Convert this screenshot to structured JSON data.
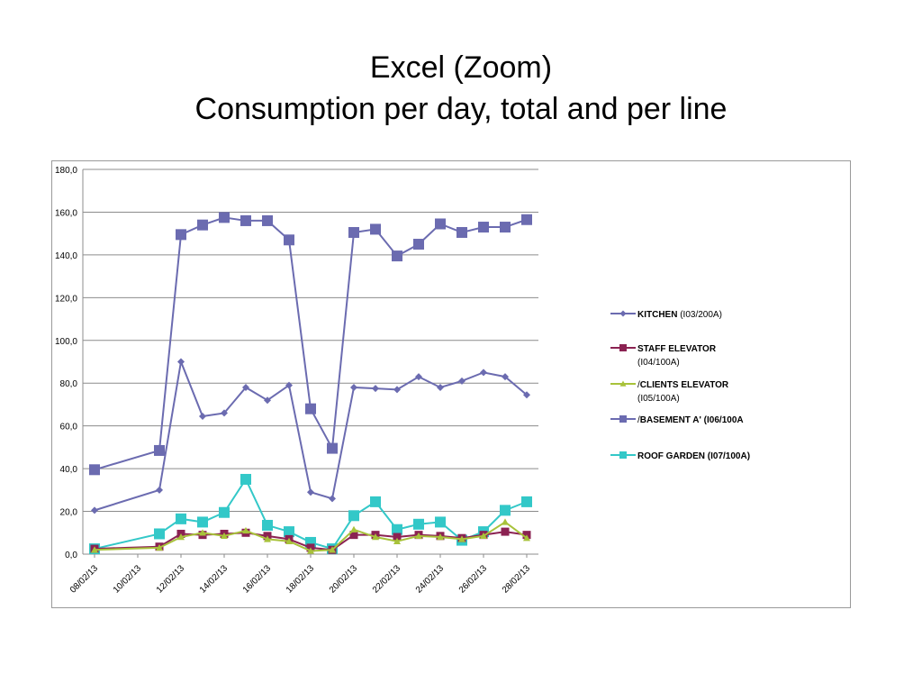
{
  "slide": {
    "title_line1": "Excel (Zoom)",
    "title_line2": "Consumption per day, total and per line"
  },
  "chart_data": {
    "type": "line",
    "xlabel": "",
    "ylabel": "",
    "ylim": [
      0,
      180
    ],
    "ytick_step": 20,
    "ytick_labels": [
      "0,0",
      "20,0",
      "40,0",
      "60,0",
      "80,0",
      "100,0",
      "120,0",
      "140,0",
      "160,0",
      "180,0"
    ],
    "x_range": [
      "08/02/13",
      "28/02/13"
    ],
    "xtick_labels": [
      "08/02/13",
      "10/02/13",
      "12/02/13",
      "14/02/13",
      "16/02/13",
      "18/02/13",
      "20/02/13",
      "22/02/13",
      "24/02/13",
      "26/02/13",
      "28/02/13"
    ],
    "grid": true,
    "legend_position": "right",
    "x": [
      "08/02/13",
      "11/02/13",
      "12/02/13",
      "13/02/13",
      "14/02/13",
      "15/02/13",
      "16/02/13",
      "17/02/13",
      "18/02/13",
      "19/02/13",
      "20/02/13",
      "21/02/13",
      "22/02/13",
      "23/02/13",
      "24/02/13",
      "25/02/13",
      "26/02/13",
      "27/02/13",
      "28/02/13"
    ],
    "series": [
      {
        "name": "KITCHEN",
        "name_suffix": " (I03/200A)",
        "color": "#6b6bb0",
        "marker": "diamond",
        "values": [
          20.5,
          30,
          90,
          64.5,
          66,
          78,
          72,
          79,
          29,
          26,
          78,
          77.5,
          77,
          83,
          78,
          81,
          85,
          83,
          74.5
        ]
      },
      {
        "name": "STAFF ELEVATOR",
        "name_line2": "(I04/100A)",
        "color": "#8b2252",
        "marker": "square",
        "values": [
          2.5,
          3.5,
          9.5,
          9,
          9.5,
          10,
          8.5,
          7,
          3,
          2,
          9,
          9,
          8,
          9,
          8.5,
          7.5,
          9,
          10.5,
          9
        ]
      },
      {
        "name": "CLIENTS ELEVATOR",
        "name_prefix": "/",
        "name_line2": "(I05/100A)",
        "color": "#a8c23a",
        "marker": "triangle",
        "values": [
          2,
          3,
          8,
          10,
          8.5,
          11,
          7,
          6,
          1.5,
          2,
          11.5,
          8,
          6,
          8.5,
          8,
          7,
          8.5,
          15,
          7.5
        ]
      },
      {
        "name": "BASEMENT A' (I06/100A",
        "name_prefix": "/",
        "color": "#6b6bb0",
        "marker": "square",
        "values": [
          39.5,
          48.5,
          149.5,
          154,
          157.5,
          156,
          156,
          147,
          68,
          49.5,
          150.5,
          152,
          139.5,
          145,
          154.5,
          150.5,
          153,
          153,
          156.5
        ]
      },
      {
        "name": "ROOF GARDEN (I07/100A)",
        "color": "#33c8c8",
        "marker": "square",
        "values": [
          2.5,
          9.5,
          16.5,
          15,
          19.5,
          35,
          13.5,
          10.5,
          5.5,
          2.5,
          18,
          24.5,
          11.5,
          14,
          15,
          6.5,
          10.5,
          20.5,
          24.5
        ]
      }
    ]
  }
}
